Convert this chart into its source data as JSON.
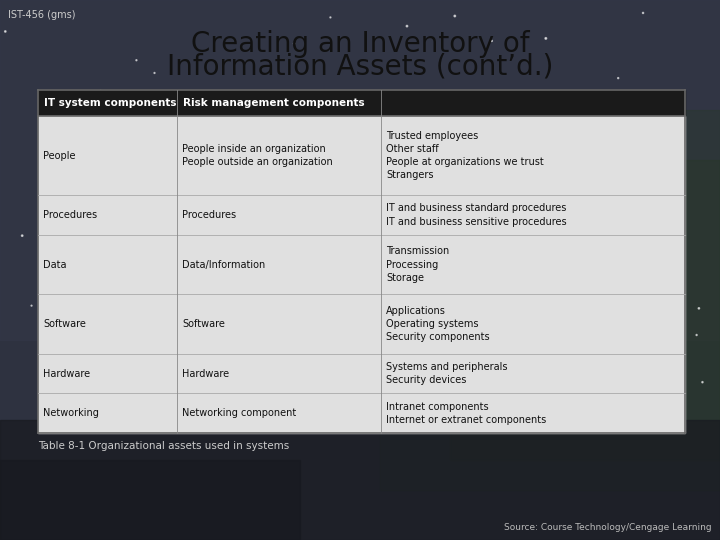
{
  "title_line1": "Creating an Inventory of",
  "title_line2": "Information Assets (cont’d.)",
  "subtitle_label": "IST-456 (gms)",
  "caption": "Table 8-1 Organizational assets used in systems",
  "source": "Source: Course Technology/Cengage Learning",
  "header_col1": "IT system components",
  "header_col23": "Risk management components",
  "rows": [
    {
      "col1": "People",
      "col2": "People inside an organization\nPeople outside an organization",
      "col3": "Trusted employees\nOther staff\nPeople at organizations we trust\nStrangers"
    },
    {
      "col1": "Procedures",
      "col2": "Procedures",
      "col3": "IT and business standard procedures\nIT and business sensitive procedures"
    },
    {
      "col1": "Data",
      "col2": "Data/Information",
      "col3": "Transmission\nProcessing\nStorage"
    },
    {
      "col1": "Software",
      "col2": "Software",
      "col3": "Applications\nOperating systems\nSecurity components"
    },
    {
      "col1": "Hardware",
      "col2": "Hardware",
      "col3": "Systems and peripherals\nSecurity devices"
    },
    {
      "col1": "Networking",
      "col2": "Networking component",
      "col3": "Intranet components\nInternet or extranet components"
    }
  ],
  "header_bg": "#1a1a1a",
  "header_fg": "#ffffff",
  "row_bg_light": "#e0e0e0",
  "row_bg_medium": "#d0d0d0",
  "table_border": "#666666",
  "title_color": "#111111",
  "title_fontsize": 20,
  "caption_color": "#cccccc",
  "source_color": "#bbbbbb",
  "row_line_color": "#aaaaaa",
  "col_line_color": "#888888",
  "bg_top": "#323640",
  "bg_mid": "#2a2e38",
  "bg_bottom": "#1e2028",
  "aurora_color": "#2a3a28"
}
